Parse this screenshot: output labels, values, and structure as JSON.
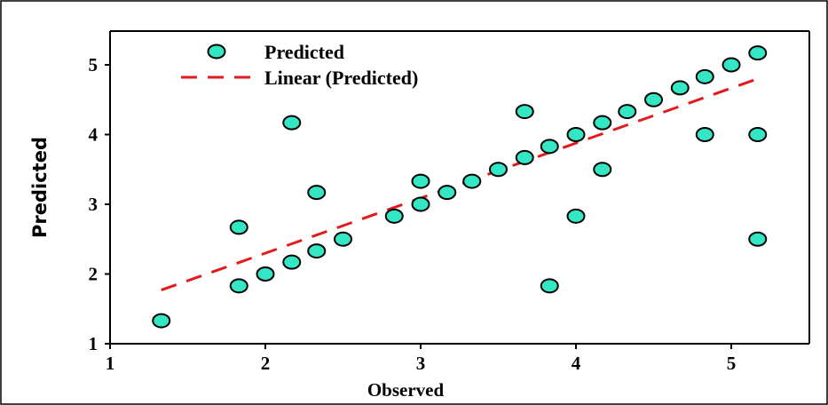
{
  "chart_data": {
    "type": "scatter",
    "xlabel": "Observed",
    "ylabel": "Predicted",
    "xlim": [
      1,
      5.35
    ],
    "ylim": [
      1,
      5.45
    ],
    "xticks": [
      1,
      2,
      3,
      4,
      5
    ],
    "yticks": [
      1,
      2,
      3,
      4,
      5
    ],
    "grid": false,
    "legend_position": "top-left",
    "colors": {
      "marker": "#33e6c4",
      "trend": "#e31a1c",
      "axis": "#000000"
    },
    "series": [
      {
        "name": "Predicted",
        "points": [
          [
            1.33,
            1.33
          ],
          [
            1.83,
            1.83
          ],
          [
            1.83,
            2.67
          ],
          [
            2.0,
            2.0
          ],
          [
            2.17,
            2.17
          ],
          [
            2.17,
            4.17
          ],
          [
            2.33,
            2.33
          ],
          [
            2.33,
            3.17
          ],
          [
            2.5,
            2.5
          ],
          [
            2.83,
            2.83
          ],
          [
            3.0,
            3.0
          ],
          [
            3.0,
            3.33
          ],
          [
            3.17,
            3.17
          ],
          [
            3.33,
            3.33
          ],
          [
            3.5,
            3.5
          ],
          [
            3.67,
            3.67
          ],
          [
            3.67,
            4.33
          ],
          [
            3.83,
            3.83
          ],
          [
            3.83,
            1.83
          ],
          [
            4.0,
            4.0
          ],
          [
            4.0,
            2.83
          ],
          [
            4.17,
            4.17
          ],
          [
            4.17,
            3.5
          ],
          [
            4.33,
            4.33
          ],
          [
            4.5,
            4.5
          ],
          [
            4.67,
            4.67
          ],
          [
            4.83,
            4.83
          ],
          [
            4.83,
            4.0
          ],
          [
            5.0,
            5.0
          ],
          [
            5.17,
            5.17
          ],
          [
            5.17,
            4.0
          ],
          [
            5.17,
            2.5
          ]
        ]
      },
      {
        "name": "Linear (Predicted)",
        "line": [
          [
            1.33,
            1.77
          ],
          [
            5.17,
            4.8
          ]
        ]
      }
    ]
  }
}
